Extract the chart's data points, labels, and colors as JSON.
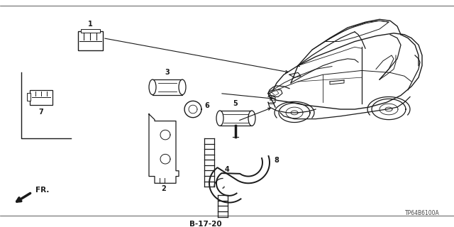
{
  "bg_color": "#ffffff",
  "line_color": "#1a1a1a",
  "text_color": "#1a1a1a",
  "ref_code": "B-17-20",
  "part_code": "TP64B6100A",
  "figsize": [
    6.4,
    3.2
  ],
  "dpi": 100
}
